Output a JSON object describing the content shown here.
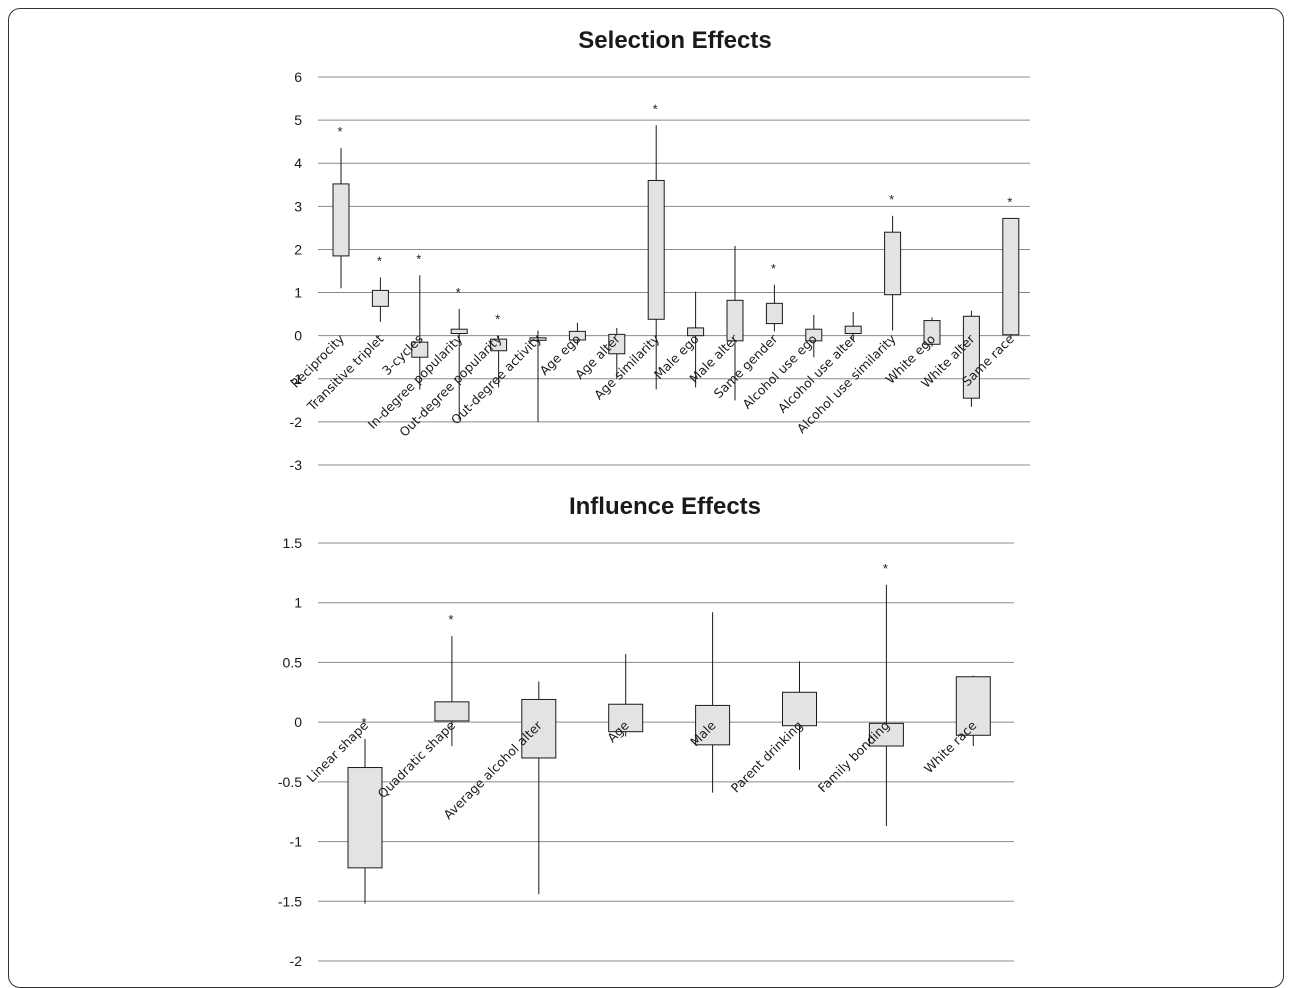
{
  "chart_data": [
    {
      "type": "box",
      "title": "Selection Effects",
      "ylim": [
        -3,
        6
      ],
      "yticks": [
        6,
        5,
        4,
        3,
        2,
        1,
        0,
        -1,
        -2,
        -3
      ],
      "grid": true,
      "categories": [
        "Reciprocity",
        "Transitive triplet",
        "3-cycles",
        "In-degree popularity",
        "Out-degree popularity",
        "Out-degree activity",
        "Age ego",
        "Age alter",
        "Age similarity",
        "Male ego",
        "Male alter",
        "Same gender",
        "Alcohol use ego",
        "Alcohol use alter",
        "Alcohol use similarity",
        "White ego",
        "White alter",
        "Same race"
      ],
      "boxes": [
        {
          "low": 1.1,
          "q1": 1.85,
          "q3": 3.52,
          "high": 4.35,
          "star": true
        },
        {
          "low": 0.32,
          "q1": 0.68,
          "q3": 1.05,
          "high": 1.35,
          "star": true
        },
        {
          "low": -1.25,
          "q1": -0.5,
          "q3": -0.15,
          "high": 1.4,
          "star": true
        },
        {
          "low": -1.95,
          "q1": 0.05,
          "q3": 0.15,
          "high": 0.62,
          "star": true
        },
        {
          "low": -1.2,
          "q1": -0.35,
          "q3": -0.08,
          "high": 0.0,
          "star": true
        },
        {
          "low": -2.0,
          "q1": -0.1,
          "q3": -0.05,
          "high": 0.12,
          "star": false
        },
        {
          "low": -0.22,
          "q1": -0.1,
          "q3": 0.1,
          "high": 0.3,
          "star": false
        },
        {
          "low": -1.0,
          "q1": -0.42,
          "q3": 0.03,
          "high": 0.18,
          "star": false
        },
        {
          "low": -1.25,
          "q1": 0.38,
          "q3": 3.6,
          "high": 4.88,
          "star": true
        },
        {
          "low": -1.2,
          "q1": 0.0,
          "q3": 0.18,
          "high": 1.02,
          "star": false
        },
        {
          "low": -1.5,
          "q1": -0.12,
          "q3": 0.82,
          "high": 2.08,
          "star": false
        },
        {
          "low": 0.1,
          "q1": 0.28,
          "q3": 0.75,
          "high": 1.18,
          "star": true
        },
        {
          "low": -0.5,
          "q1": -0.12,
          "q3": 0.15,
          "high": 0.48,
          "star": false
        },
        {
          "low": -0.1,
          "q1": 0.05,
          "q3": 0.22,
          "high": 0.55,
          "star": false
        },
        {
          "low": 0.12,
          "q1": 0.95,
          "q3": 2.4,
          "high": 2.78,
          "star": true
        },
        {
          "low": -0.25,
          "q1": -0.2,
          "q3": 0.35,
          "high": 0.42,
          "star": false
        },
        {
          "low": -1.65,
          "q1": -1.45,
          "q3": 0.45,
          "high": 0.58,
          "star": false
        },
        {
          "low": -0.03,
          "q1": 0.02,
          "q3": 2.72,
          "high": 2.72,
          "star": true
        }
      ],
      "star_label": "*"
    },
    {
      "type": "box",
      "title": "Influence Effects",
      "ylim": [
        -2,
        1.5
      ],
      "yticks": [
        1.5,
        1,
        0.5,
        0,
        -0.5,
        -1,
        -1.5,
        -2
      ],
      "grid": true,
      "categories": [
        "Linear shape",
        "Quadratic shape",
        "Average alcohol alter",
        "Age",
        "Male",
        "Parent drinking",
        "Family bonding",
        "White race"
      ],
      "boxes": [
        {
          "low": -1.52,
          "q1": -1.22,
          "q3": -0.38,
          "high": -0.14,
          "star": true
        },
        {
          "low": -0.2,
          "q1": 0.01,
          "q3": 0.17,
          "high": 0.72,
          "star": true
        },
        {
          "low": -1.44,
          "q1": -0.3,
          "q3": 0.19,
          "high": 0.34,
          "star": false
        },
        {
          "low": -0.12,
          "q1": -0.08,
          "q3": 0.15,
          "high": 0.57,
          "star": false
        },
        {
          "low": -0.59,
          "q1": -0.19,
          "q3": 0.14,
          "high": 0.92,
          "star": false
        },
        {
          "low": -0.4,
          "q1": -0.03,
          "q3": 0.25,
          "high": 0.51,
          "star": false
        },
        {
          "low": -0.87,
          "q1": -0.2,
          "q3": -0.01,
          "high": 1.15,
          "star": true
        },
        {
          "low": -0.2,
          "q1": -0.11,
          "q3": 0.38,
          "high": 0.39,
          "star": false
        }
      ],
      "star_label": "*"
    }
  ]
}
